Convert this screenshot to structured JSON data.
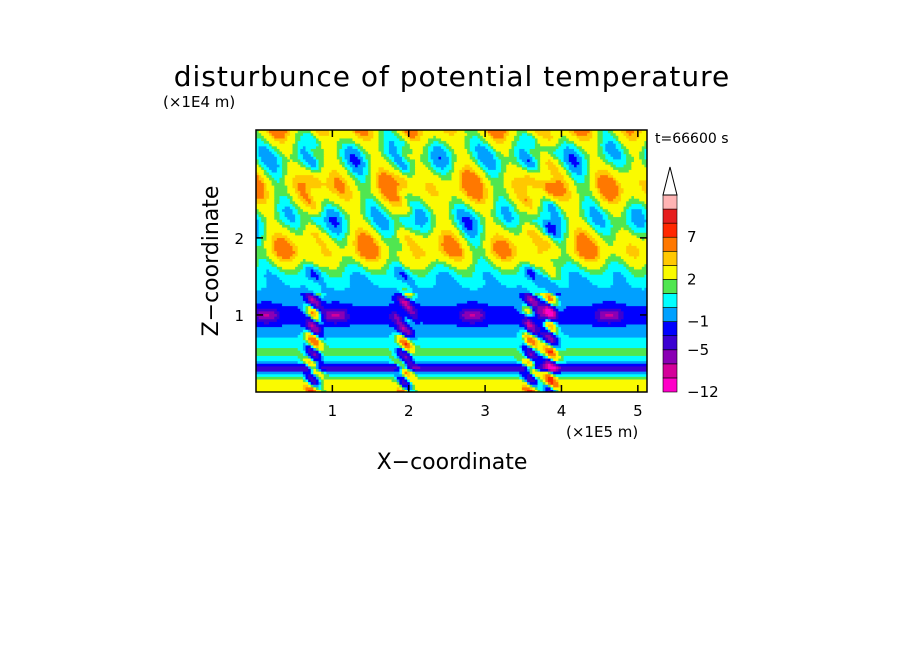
{
  "chart_data": {
    "type": "heatmap",
    "title": "disturbunce of potential temperature",
    "xlabel": "X−coordinate",
    "ylabel": "Z−coordinate",
    "x_scale_label": "(×1E5 m)",
    "y_scale_label": "(×1E4 m)",
    "time_label": "t=66600 s",
    "xlim": [
      0,
      5.12
    ],
    "ylim": [
      0,
      3.4
    ],
    "x_ticks": [
      {
        "value": 1,
        "label": "1"
      },
      {
        "value": 2,
        "label": "2"
      },
      {
        "value": 3,
        "label": "3"
      },
      {
        "value": 4,
        "label": "4"
      },
      {
        "value": 5,
        "label": "5"
      }
    ],
    "y_ticks": [
      {
        "value": 1,
        "label": "1"
      },
      {
        "value": 2,
        "label": "2"
      }
    ],
    "colorbar": {
      "levels": [
        -12,
        -9,
        -7,
        -5,
        -3,
        -1,
        0,
        1,
        2,
        4,
        5,
        7,
        9,
        11
      ],
      "labels": [
        {
          "value": -12,
          "label": "−12"
        },
        {
          "value": -5,
          "label": "−5"
        },
        {
          "value": -1,
          "label": "−1"
        },
        {
          "value": 2,
          "label": "2"
        },
        {
          "value": 7,
          "label": "7"
        }
      ],
      "colors": [
        "#ff00c8",
        "#d4009a",
        "#8a00b4",
        "#3c00d2",
        "#0000ff",
        "#00a0ff",
        "#00ffff",
        "#50e650",
        "#fafa00",
        "#ffc800",
        "#ff7800",
        "#ff2800",
        "#e61e1e",
        "#ffb4b4"
      ],
      "extend_max": true
    }
  }
}
